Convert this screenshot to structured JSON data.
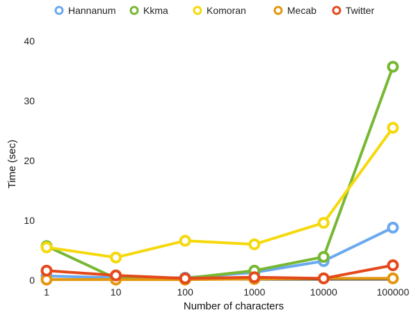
{
  "chart_data": {
    "type": "line",
    "title": "",
    "xlabel": "Number of characters",
    "ylabel": "Time (sec)",
    "x_scale": "log",
    "categories": [
      "1",
      "10",
      "100",
      "1000",
      "10000",
      "100000"
    ],
    "ylim": [
      0,
      40
    ],
    "yticks": [
      0,
      10,
      20,
      30,
      40
    ],
    "grid": false,
    "legend_position": "top",
    "series": [
      {
        "name": "Hannanum",
        "color": "#6aa9f0",
        "values": [
          0.7,
          0.4,
          0.4,
          1.3,
          3.2,
          8.8
        ]
      },
      {
        "name": "Kkma",
        "color": "#77b832",
        "values": [
          5.7,
          0.3,
          0.3,
          1.6,
          3.9,
          35.7
        ]
      },
      {
        "name": "Komoran",
        "color": "#f5d90c",
        "values": [
          5.5,
          3.8,
          6.6,
          6.0,
          9.6,
          25.5
        ]
      },
      {
        "name": "Mecab",
        "color": "#e3960e",
        "values": [
          0.1,
          0.1,
          0.1,
          0.2,
          0.3,
          0.3
        ]
      },
      {
        "name": "Twitter",
        "color": "#e4491c",
        "values": [
          1.6,
          0.8,
          0.3,
          0.5,
          0.3,
          2.5
        ]
      }
    ]
  }
}
